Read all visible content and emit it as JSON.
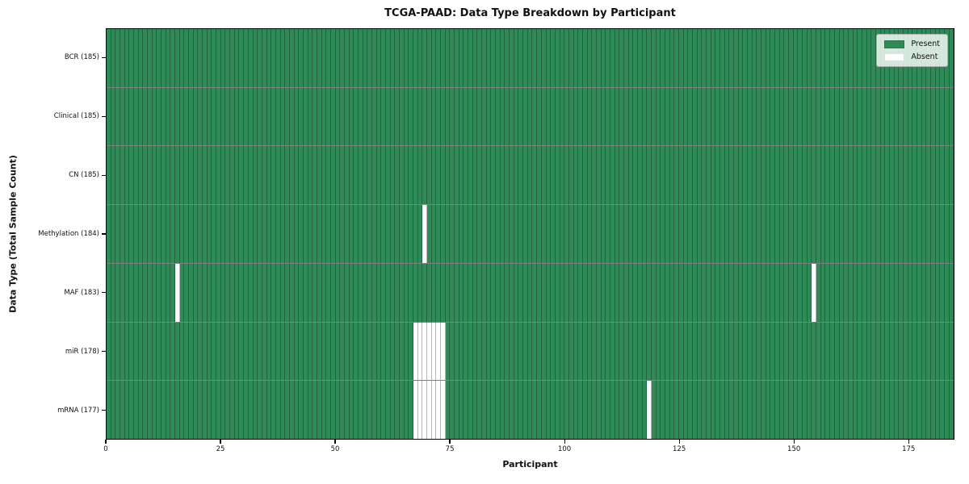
{
  "chart_data": {
    "type": "heatmap",
    "title": "TCGA-PAAD: Data Type Breakdown by Participant",
    "xlabel": "Participant",
    "ylabel": "Data Type (Total Sample Count)",
    "n_participants": 185,
    "xlim": [
      0,
      185
    ],
    "x_ticks": [
      0,
      25,
      50,
      75,
      100,
      125,
      150,
      175
    ],
    "legend_position": "upper right",
    "colors": {
      "present": "#2e8b57",
      "absent": "#ffffff"
    },
    "legend": [
      {
        "label": "Present",
        "state": "present",
        "color": "#2e8b57"
      },
      {
        "label": "Absent",
        "state": "absent",
        "color": "#ffffff"
      }
    ],
    "rows": [
      {
        "label": "BCR (185)",
        "data_type": "BCR",
        "total_samples": 185,
        "absent_participants": []
      },
      {
        "label": "Clinical (185)",
        "data_type": "Clinical",
        "total_samples": 185,
        "absent_participants": []
      },
      {
        "label": "CN (185)",
        "data_type": "CN",
        "total_samples": 185,
        "absent_participants": []
      },
      {
        "label": "Methylation (184)",
        "data_type": "Methylation",
        "total_samples": 184,
        "absent_participants": [
          69
        ]
      },
      {
        "label": "MAF (183)",
        "data_type": "MAF",
        "total_samples": 183,
        "absent_participants": [
          15,
          154
        ]
      },
      {
        "label": "miR (178)",
        "data_type": "miR",
        "total_samples": 178,
        "absent_participants": [
          67,
          68,
          69,
          70,
          71,
          72,
          73
        ]
      },
      {
        "label": "mRNA (177)",
        "data_type": "mRNA",
        "total_samples": 177,
        "absent_participants": [
          67,
          68,
          69,
          70,
          71,
          72,
          73,
          118
        ]
      }
    ]
  }
}
